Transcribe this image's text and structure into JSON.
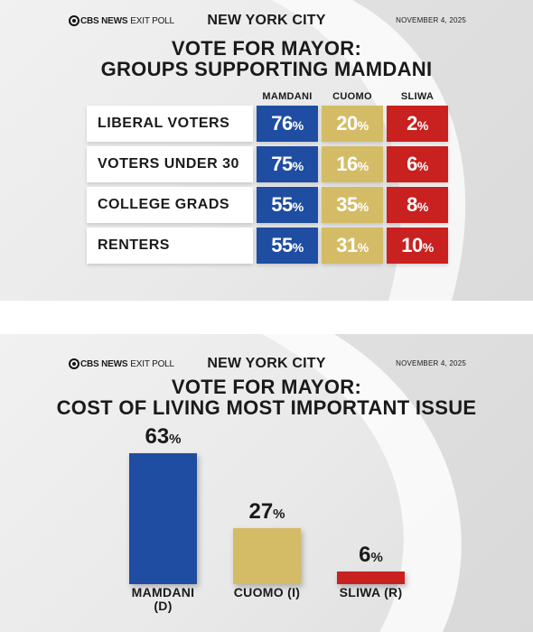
{
  "colors": {
    "mamdani": "#1e4da1",
    "cuomo": "#d4bc66",
    "sliwa": "#c8211f"
  },
  "panel1": {
    "logo_brand": "CBS NEWS",
    "logo_sub": "EXIT POLL",
    "city": "NEW YORK CITY",
    "date": "NOVEMBER 4, 2025",
    "title_line1": "VOTE FOR MAYOR:",
    "title_line2": "GROUPS SUPPORTING MAMDANI"
  },
  "panel2": {
    "logo_brand": "CBS NEWS",
    "logo_sub": "EXIT POLL",
    "city": "NEW YORK CITY",
    "date": "NOVEMBER 4, 2025",
    "title_line1": "VOTE FOR MAYOR:",
    "title_line2": "COST OF LIVING MOST IMPORTANT ISSUE"
  },
  "chart_data": [
    {
      "type": "table",
      "title": "VOTE FOR MAYOR: GROUPS SUPPORTING MAMDANI",
      "columns": [
        "MAMDANI",
        "CUOMO",
        "SLIWA"
      ],
      "rows": [
        {
          "label": "LIBERAL VOTERS",
          "values": [
            76,
            20,
            2
          ]
        },
        {
          "label": "VOTERS UNDER 30",
          "values": [
            75,
            16,
            6
          ]
        },
        {
          "label": "COLLEGE GRADS",
          "values": [
            55,
            35,
            8
          ]
        },
        {
          "label": "RENTERS",
          "values": [
            55,
            31,
            10
          ]
        }
      ],
      "unit": "%"
    },
    {
      "type": "bar",
      "title": "VOTE FOR MAYOR: COST OF LIVING MOST IMPORTANT ISSUE",
      "categories": [
        "MAMDANI\n(D)",
        "CUOMO (I)",
        "SLIWA (R)"
      ],
      "values": [
        63,
        27,
        6
      ],
      "unit": "%",
      "ylim": [
        0,
        63
      ]
    }
  ]
}
